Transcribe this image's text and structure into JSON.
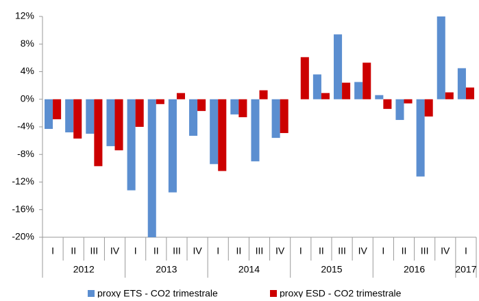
{
  "chart_data": {
    "type": "bar",
    "categories": [
      "I",
      "II",
      "III",
      "IV",
      "I",
      "II",
      "III",
      "IV",
      "I",
      "II",
      "III",
      "IV",
      "I",
      "II",
      "III",
      "IV",
      "I",
      "II",
      "III",
      "IV",
      "I"
    ],
    "year_labels": [
      "2012",
      "2013",
      "2014",
      "2015",
      "2016",
      "2017"
    ],
    "series": [
      {
        "name": "proxy ETS - CO2 trimestrale",
        "color": "#5b8ed0",
        "values": [
          -4.3,
          -4.8,
          -5.0,
          -6.8,
          -13.2,
          -20.0,
          -13.5,
          -5.3,
          -9.4,
          -2.2,
          -9.0,
          -5.6,
          0,
          3.6,
          9.4,
          2.5,
          0.6,
          -3.0,
          -11.2,
          12.0,
          4.5
        ]
      },
      {
        "name": "proxy ESD - CO2 trimestrale",
        "color": "#cc0000",
        "values": [
          -2.9,
          -5.7,
          -9.7,
          -7.4,
          -4.0,
          -0.7,
          0.9,
          -1.7,
          -10.4,
          -2.6,
          1.3,
          -4.9,
          6.1,
          0.9,
          2.4,
          5.3,
          -1.4,
          -0.6,
          -2.5,
          1.0,
          1.7
        ]
      }
    ],
    "ylim": [
      -20,
      12
    ],
    "yticks": [
      {
        "value": -20,
        "label": "-20%"
      },
      {
        "value": -16,
        "label": "-16%"
      },
      {
        "value": -12,
        "label": "-12%"
      },
      {
        "value": -8,
        "label": "-8%"
      },
      {
        "value": -4,
        "label": "-4%"
      },
      {
        "value": 0,
        "label": "0%"
      },
      {
        "value": 4,
        "label": "4%"
      },
      {
        "value": 8,
        "label": "8%"
      },
      {
        "value": 12,
        "label": "12%"
      }
    ],
    "legend": "bottom"
  }
}
